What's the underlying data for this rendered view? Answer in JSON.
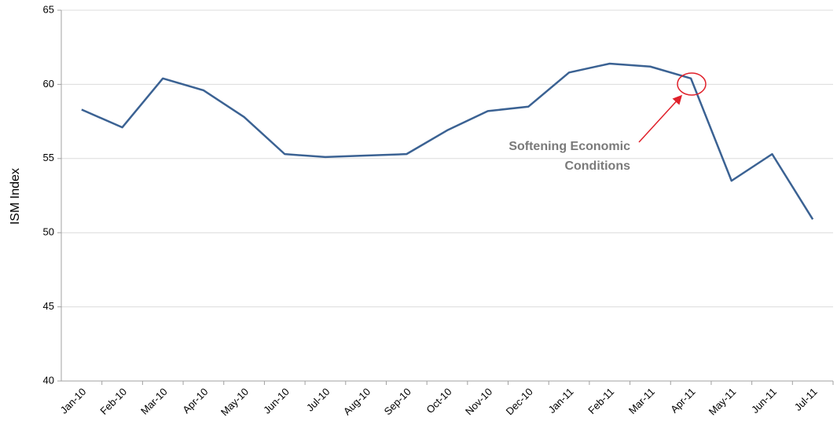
{
  "chart_data": {
    "type": "line",
    "y_label": "ISM Index",
    "categories": [
      "Jan-10",
      "Feb-10",
      "Mar-10",
      "Apr-10",
      "May-10",
      "Jun-10",
      "Jul-10",
      "Aug-10",
      "Sep-10",
      "Oct-10",
      "Nov-10",
      "Dec-10",
      "Jan-11",
      "Feb-11",
      "Mar-11",
      "Apr-11",
      "May-11",
      "Jun-11",
      "Jul-11"
    ],
    "series": [
      {
        "name": "ISM Index",
        "color": "#3b6293",
        "values": [
          58.3,
          57.1,
          60.4,
          59.6,
          57.8,
          55.3,
          55.1,
          55.2,
          55.3,
          56.9,
          58.2,
          58.5,
          60.8,
          61.4,
          61.2,
          60.4,
          53.5,
          55.3,
          50.9
        ]
      }
    ],
    "ylim": [
      40,
      65
    ],
    "yticks": [
      40,
      45,
      50,
      55,
      60,
      65
    ],
    "grid": true,
    "annotation": [
      "Softening Economic",
      "Conditions"
    ]
  }
}
